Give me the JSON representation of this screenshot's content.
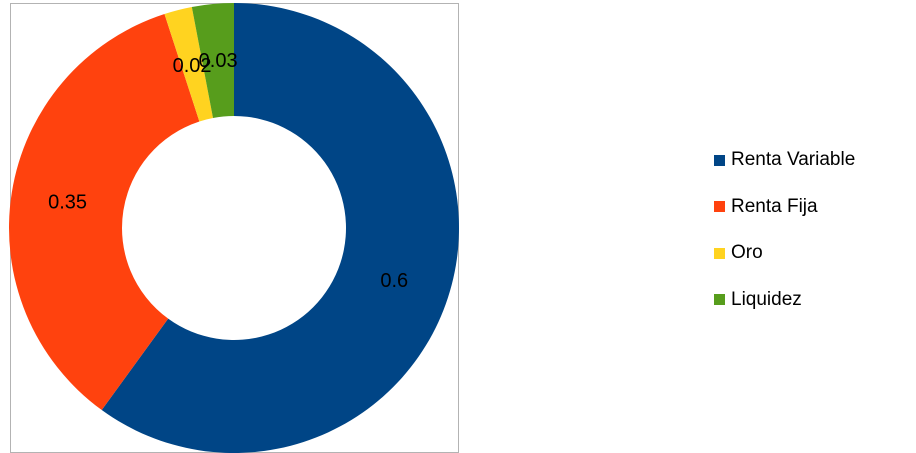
{
  "chart_data": {
    "type": "pie",
    "variant": "donut",
    "title": "",
    "categories": [
      "Renta Variable",
      "Renta Fija",
      "Oro",
      "Liquidez"
    ],
    "values": [
      0.6,
      0.35,
      0.02,
      0.03
    ],
    "data_labels": [
      "0.6",
      "0.35",
      "0.02",
      "0.03"
    ],
    "colors": [
      "#004586",
      "#ff420e",
      "#ffd320",
      "#579d1c"
    ],
    "legend_position": "right",
    "start_angle": "top, clockwise"
  }
}
